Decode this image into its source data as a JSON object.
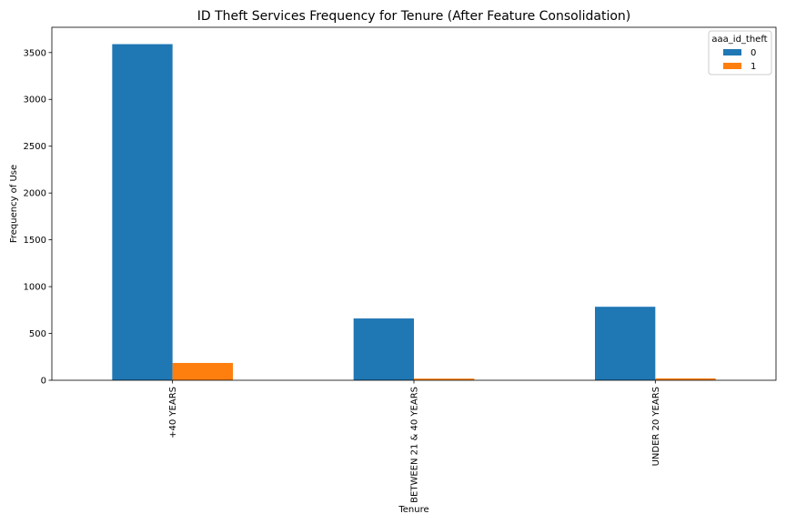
{
  "chart_data": {
    "type": "bar",
    "title": "ID Theft Services Frequency for Tenure (After Feature Consolidation)",
    "xlabel": "Tenure",
    "ylabel": "Frequency of Use",
    "categories": [
      "+40 YEARS",
      "BETWEEN 21 & 40 YEARS",
      "UNDER 20 YEARS"
    ],
    "series": [
      {
        "name": "0",
        "values": [
          3590,
          660,
          785
        ],
        "color": "#1f77b4"
      },
      {
        "name": "1",
        "values": [
          185,
          18,
          20
        ],
        "color": "#ff7f0e"
      }
    ],
    "ylim": [
      0,
      3770
    ],
    "yticks": [
      0,
      500,
      1000,
      1500,
      2000,
      2500,
      3000,
      3500
    ],
    "grid": false,
    "legend": {
      "title": "aaa_id_theft",
      "placement": "top-right"
    }
  }
}
